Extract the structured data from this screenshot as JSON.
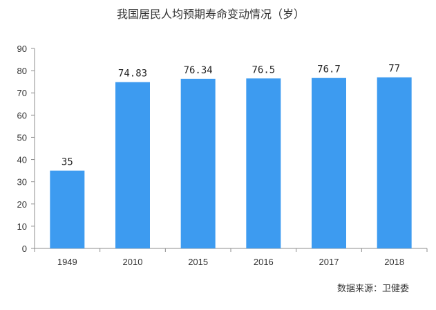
{
  "chart_data": {
    "type": "bar",
    "title": "我国居民人均预期寿命变动情况（岁）",
    "categories": [
      "1949",
      "2010",
      "2015",
      "2016",
      "2017",
      "2018"
    ],
    "values": [
      35,
      74.83,
      76.34,
      76.5,
      76.7,
      77
    ],
    "value_labels": [
      "35",
      "74.83",
      "76.34",
      "76.5",
      "76.7",
      "77"
    ],
    "ylim": [
      0,
      90
    ],
    "yticks": [
      0,
      10,
      20,
      30,
      40,
      50,
      60,
      70,
      80,
      90
    ],
    "xlabel": "",
    "ylabel": "",
    "grid": false,
    "legend": "none",
    "bar_color": "#3d9bf0",
    "source": "数据来源：卫健委"
  }
}
